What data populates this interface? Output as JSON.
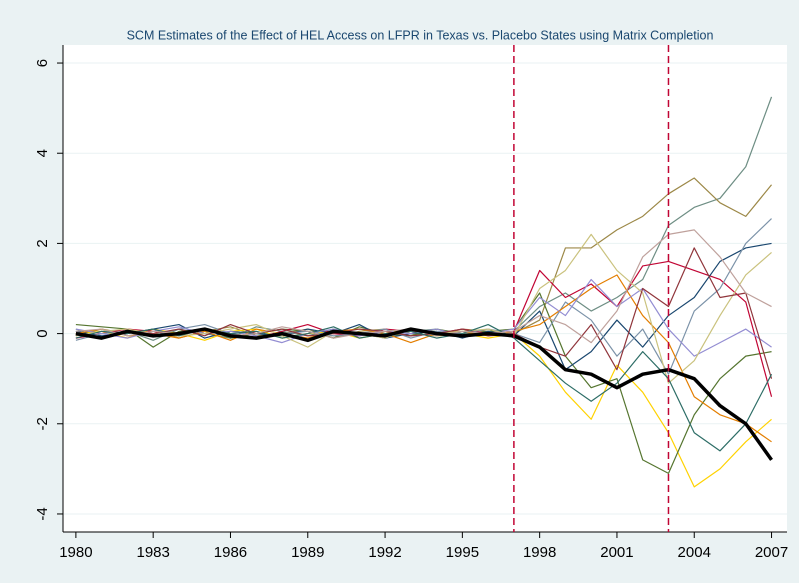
{
  "chart_data": {
    "type": "line",
    "title": "SCM Estimates of the Effect of HEL Access on LFPR in Texas vs. Placebo States using Matrix Completion",
    "x": [
      1980,
      1981,
      1982,
      1983,
      1984,
      1985,
      1986,
      1987,
      1988,
      1989,
      1990,
      1991,
      1992,
      1993,
      1994,
      1995,
      1996,
      1997,
      1998,
      1999,
      2000,
      2001,
      2002,
      2003,
      2004,
      2005,
      2006,
      2007
    ],
    "xlim": [
      1979.5,
      2007.6
    ],
    "xticks": [
      1980,
      1983,
      1986,
      1989,
      1992,
      1995,
      1998,
      2001,
      2004,
      2007
    ],
    "ylim": [
      -4.4,
      6.4
    ],
    "yticks": [
      -4,
      -2,
      0,
      2,
      4,
      6
    ],
    "grid": true,
    "xlines": [
      1997,
      2003
    ],
    "xline_color": "#c10534",
    "series": [
      {
        "color": "#6e8e84",
        "values": [
          0.1,
          -0.1,
          0.05,
          -0.15,
          0.1,
          0.0,
          -0.1,
          0.15,
          0.05,
          -0.05,
          0.1,
          0.0,
          -0.1,
          0.05,
          0.1,
          -0.05,
          0.0,
          0.05,
          0.6,
          0.9,
          0.5,
          0.8,
          1.2,
          2.4,
          2.8,
          3.0,
          3.7,
          5.25
        ]
      },
      {
        "color": "#9c8847",
        "values": [
          -0.05,
          0.1,
          0.0,
          0.1,
          -0.1,
          0.05,
          0.15,
          -0.05,
          0.0,
          0.1,
          -0.1,
          0.05,
          0.1,
          0.0,
          -0.05,
          0.1,
          0.05,
          0.0,
          0.3,
          1.9,
          1.9,
          2.3,
          2.6,
          3.1,
          3.45,
          2.9,
          2.6,
          3.3
        ]
      },
      {
        "color": "#ffd200",
        "values": [
          0.0,
          0.05,
          -0.1,
          0.1,
          0.0,
          -0.15,
          0.05,
          0.1,
          -0.1,
          0.0,
          0.05,
          -0.1,
          0.0,
          0.1,
          -0.05,
          0.0,
          -0.1,
          0.0,
          -0.5,
          -1.3,
          -1.9,
          -0.7,
          -1.3,
          -2.2,
          -3.4,
          -3.0,
          -2.4,
          -1.9
        ]
      },
      {
        "color": "#55752f",
        "values": [
          0.2,
          0.15,
          0.1,
          -0.3,
          0.05,
          0.1,
          -0.1,
          0.0,
          0.1,
          0.05,
          -0.1,
          0.15,
          0.0,
          -0.05,
          0.1,
          0.0,
          0.05,
          0.1,
          0.9,
          -0.5,
          -1.2,
          -1.0,
          -2.8,
          -3.1,
          -1.8,
          -1.0,
          -0.5,
          -0.4
        ]
      },
      {
        "color": "#c10534",
        "values": [
          -0.1,
          0.0,
          0.1,
          0.05,
          -0.05,
          0.1,
          0.0,
          -0.1,
          0.05,
          0.2,
          0.0,
          -0.05,
          0.1,
          0.05,
          0.0,
          0.1,
          0.0,
          0.05,
          1.4,
          0.8,
          1.1,
          0.6,
          1.5,
          1.6,
          1.4,
          1.2,
          0.7,
          -1.4
        ]
      },
      {
        "color": "#1a476f",
        "values": [
          0.05,
          -0.05,
          0.0,
          0.1,
          0.2,
          -0.1,
          0.05,
          0.0,
          -0.05,
          0.1,
          0.0,
          0.2,
          -0.1,
          0.0,
          0.05,
          -0.1,
          0.05,
          -0.05,
          0.5,
          -0.8,
          -0.4,
          0.3,
          -0.3,
          0.4,
          0.8,
          1.6,
          1.9,
          2.0
        ]
      },
      {
        "color": "#7b92a8",
        "values": [
          -0.15,
          0.0,
          0.05,
          -0.05,
          0.1,
          0.2,
          0.0,
          -0.1,
          0.0,
          0.05,
          -0.05,
          0.0,
          0.1,
          -0.1,
          0.05,
          0.0,
          0.1,
          0.0,
          -0.2,
          0.7,
          0.3,
          -0.5,
          0.1,
          -0.9,
          0.5,
          1.0,
          2.0,
          2.55
        ]
      },
      {
        "color": "#e37e00",
        "values": [
          0.0,
          0.1,
          -0.05,
          0.0,
          -0.1,
          0.05,
          -0.15,
          0.1,
          0.0,
          -0.1,
          0.05,
          0.1,
          0.0,
          -0.2,
          0.0,
          0.05,
          -0.05,
          0.05,
          0.2,
          0.6,
          1.0,
          1.3,
          0.4,
          -0.2,
          -1.4,
          -1.8,
          -2.0,
          -2.4
        ]
      },
      {
        "color": "#938dd2",
        "values": [
          0.1,
          0.0,
          -0.1,
          0.05,
          0.15,
          0.0,
          0.05,
          -0.05,
          -0.2,
          0.0,
          0.1,
          -0.05,
          0.05,
          0.0,
          0.1,
          -0.05,
          0.0,
          0.1,
          0.8,
          0.4,
          1.2,
          0.6,
          1.0,
          0.1,
          -0.5,
          -0.2,
          0.1,
          -0.3
        ]
      },
      {
        "color": "#cac27e",
        "values": [
          -0.05,
          0.05,
          0.1,
          0.0,
          -0.05,
          0.0,
          0.1,
          0.2,
          -0.05,
          -0.3,
          0.05,
          0.0,
          -0.1,
          0.1,
          0.0,
          0.05,
          0.1,
          -0.05,
          1.0,
          1.4,
          2.2,
          1.4,
          0.9,
          -1.1,
          -0.6,
          0.4,
          1.3,
          1.8
        ]
      },
      {
        "color": "#90353b",
        "values": [
          0.0,
          -0.1,
          0.05,
          0.0,
          0.1,
          -0.05,
          0.2,
          0.0,
          0.1,
          -0.05,
          0.0,
          0.1,
          0.05,
          -0.05,
          0.0,
          0.1,
          -0.05,
          0.0,
          -0.3,
          -0.5,
          0.2,
          -0.8,
          1.0,
          0.6,
          1.9,
          0.8,
          0.9,
          -1.0
        ]
      },
      {
        "color": "#2d6d66",
        "values": [
          -0.1,
          0.05,
          0.0,
          0.1,
          -0.05,
          0.1,
          0.0,
          0.05,
          -0.1,
          0.0,
          0.15,
          -0.1,
          0.0,
          0.05,
          -0.1,
          0.0,
          0.2,
          -0.1,
          -0.6,
          -1.1,
          -1.5,
          -1.1,
          -0.4,
          -1.0,
          -2.2,
          -2.6,
          -2.0,
          -0.9
        ]
      },
      {
        "color": "#bfa19c",
        "values": [
          0.05,
          0.1,
          -0.05,
          0.05,
          0.0,
          0.1,
          -0.05,
          0.0,
          0.15,
          0.05,
          -0.1,
          0.0,
          0.05,
          0.1,
          -0.05,
          0.05,
          0.0,
          0.05,
          0.4,
          0.2,
          -0.2,
          0.5,
          1.7,
          2.2,
          2.3,
          1.7,
          0.9,
          0.6
        ]
      },
      {
        "color": "#000000",
        "width": 3.5,
        "values": [
          0.0,
          -0.1,
          0.05,
          -0.05,
          0.0,
          0.1,
          -0.05,
          -0.1,
          0.0,
          -0.15,
          0.05,
          0.0,
          -0.05,
          0.1,
          0.0,
          -0.05,
          0.0,
          -0.05,
          -0.3,
          -0.8,
          -0.9,
          -1.2,
          -0.9,
          -0.8,
          -1.0,
          -1.6,
          -2.0,
          -2.8
        ]
      }
    ]
  }
}
